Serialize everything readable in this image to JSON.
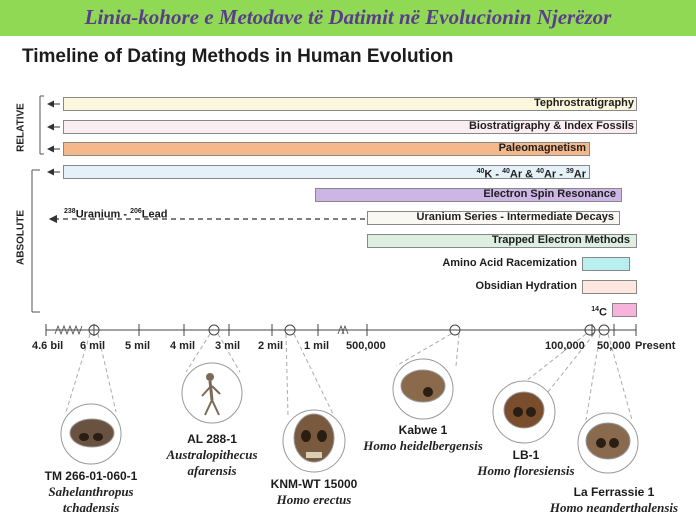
{
  "banner": {
    "text": "Linia-kohore e Metodave të Datimit në Evolucionin Njerëzor",
    "color": "#90d955"
  },
  "title": "Timeline of Dating Methods in Human Evolution",
  "groups": {
    "relative": "RELATIVE",
    "absolute": "ABSOLUTE"
  },
  "methods": [
    {
      "id": "tephro",
      "label": "Tephrostratigraphy",
      "color": "#fbf6dc"
    },
    {
      "id": "bio",
      "label": "Biostratigraphy & Index Fossils",
      "color": "#fbeef2"
    },
    {
      "id": "paleo",
      "label": "Paleomagnetism",
      "color": "#f5b88a"
    },
    {
      "id": "kar",
      "color": "#e4f1f8"
    },
    {
      "id": "esr",
      "label": "Electron Spin Resonance",
      "color": "#cdb5e5"
    },
    {
      "id": "useries",
      "label": "Uranium Series - Intermediate Decays",
      "color": "#f9f8f3"
    },
    {
      "id": "tl",
      "label": "Trapped Electron Methods",
      "color": "#dcefe0"
    },
    {
      "id": "aar",
      "label": "Amino Acid Racemization",
      "color": "#b9efee"
    },
    {
      "id": "obs",
      "label": "Obsidian Hydration",
      "color": "#fde7de"
    },
    {
      "id": "c14",
      "color": "#f6b4dc"
    }
  ],
  "kar_parts": {
    "k": "K - ",
    "ar1": "Ar & ",
    "ar2": "Ar - ",
    "ar3": "Ar",
    "sup1": "40",
    "sup2": "40",
    "sup3": "40",
    "sup4": "39"
  },
  "c14_parts": {
    "sup": "14",
    "c": "C"
  },
  "uranium_lead": {
    "sup1": "238",
    "u": "Uranium - ",
    "sup2": "206",
    "pb": "Lead"
  },
  "ticks": [
    "4.6 bil",
    "6 mil",
    "5 mil",
    "4 mil",
    "3 mil",
    "2 mil",
    "1 mil",
    "500,000",
    "100,000",
    "50,000",
    "Present"
  ],
  "fossils": [
    {
      "name": "TM 266-01-060-1",
      "species1": "Sahelanthropus",
      "species2": "tchadensis"
    },
    {
      "name": "AL 288-1",
      "species1": "Australopithecus",
      "species2": "afarensis"
    },
    {
      "name": "KNM-WT 15000",
      "species1": "Homo erectus"
    },
    {
      "name": "Kabwe 1",
      "species1": "Homo heidelbergensis"
    },
    {
      "name": "LB-1",
      "species1": "Homo floresiensis"
    },
    {
      "name": "La Ferrassie 1",
      "species1": "Homo neanderthalensis"
    }
  ]
}
